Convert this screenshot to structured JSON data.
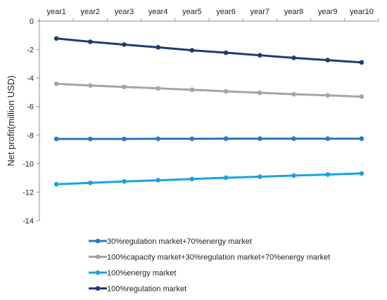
{
  "chart_data": {
    "type": "line",
    "x": [
      "year1",
      "year2",
      "year3",
      "year4",
      "year5",
      "year6",
      "year7",
      "year8",
      "year9",
      "year10"
    ],
    "ylabel": "Net profit(million USD)",
    "yticks": [
      0,
      -2,
      -4,
      -6,
      -8,
      -10,
      -12,
      -14
    ],
    "ylim": [
      -14,
      0
    ],
    "x_axis_position": "top",
    "grid": false,
    "legend_position": "bottom",
    "series": [
      {
        "name": "30%regulation market+70%energy market",
        "color": "#2E75C6",
        "values": [
          -8.27,
          -8.27,
          -8.27,
          -8.26,
          -8.26,
          -8.25,
          -8.25,
          -8.25,
          -8.25,
          -8.25
        ]
      },
      {
        "name": "100%capacity market+30%regulation market+70%energy market",
        "color": "#A5A5A5",
        "values": [
          -4.4,
          -4.52,
          -4.62,
          -4.72,
          -4.82,
          -4.93,
          -5.03,
          -5.13,
          -5.21,
          -5.3
        ]
      },
      {
        "name": "100%energy market",
        "color": "#1BA1E2",
        "values": [
          -11.45,
          -11.35,
          -11.25,
          -11.17,
          -11.08,
          -10.99,
          -10.92,
          -10.84,
          -10.77,
          -10.69
        ]
      },
      {
        "name": "100%regulation market",
        "color": "#1F3B73",
        "values": [
          -1.22,
          -1.45,
          -1.65,
          -1.84,
          -2.05,
          -2.22,
          -2.4,
          -2.58,
          -2.74,
          -2.9
        ]
      }
    ]
  }
}
